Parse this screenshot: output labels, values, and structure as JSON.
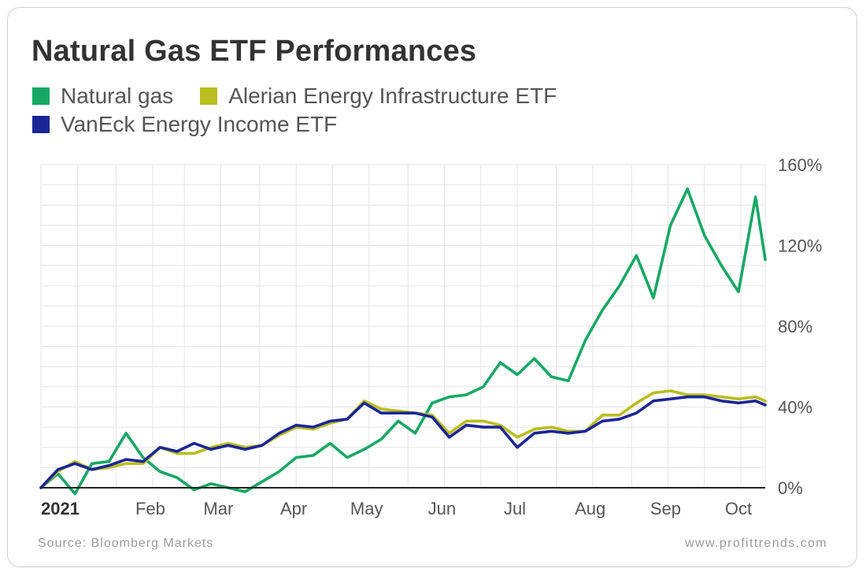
{
  "chart_data": {
    "type": "line",
    "title": "Natural Gas ETF Performances",
    "xlabel": "",
    "ylabel": "",
    "x_tick_labels": [
      "2021",
      "Feb",
      "Mar",
      "Apr",
      "May",
      "Jun",
      "Jul",
      "Aug",
      "Sep",
      "Oct"
    ],
    "y_tick_labels": [
      "0%",
      "40%",
      "80%",
      "120%",
      "160%"
    ],
    "y_ticks": [
      0,
      40,
      80,
      120,
      160
    ],
    "ylim": [
      0,
      160
    ],
    "xlim": [
      "2021-01-01",
      "2021-10-26"
    ],
    "grid": true,
    "legend_position": "top-left",
    "x_dates": [
      "2021-01-01",
      "2021-01-08",
      "2021-01-15",
      "2021-01-22",
      "2021-01-29",
      "2021-02-05",
      "2021-02-12",
      "2021-02-19",
      "2021-02-26",
      "2021-03-05",
      "2021-03-12",
      "2021-03-19",
      "2021-03-26",
      "2021-04-02",
      "2021-04-09",
      "2021-04-16",
      "2021-04-23",
      "2021-04-30",
      "2021-05-07",
      "2021-05-14",
      "2021-05-21",
      "2021-05-28",
      "2021-06-04",
      "2021-06-11",
      "2021-06-18",
      "2021-06-25",
      "2021-07-02",
      "2021-07-09",
      "2021-07-16",
      "2021-07-23",
      "2021-07-30",
      "2021-08-06",
      "2021-08-13",
      "2021-08-20",
      "2021-08-27",
      "2021-09-03",
      "2021-09-10",
      "2021-09-17",
      "2021-09-24",
      "2021-10-01",
      "2021-10-08",
      "2021-10-15",
      "2021-10-22",
      "2021-10-26"
    ],
    "series": [
      {
        "name": "Natural gas",
        "color": "#16a864",
        "values": [
          0,
          7,
          -3,
          12,
          13,
          27,
          15,
          8,
          5,
          -1,
          2,
          0,
          -2,
          3,
          8,
          15,
          16,
          22,
          15,
          19,
          24,
          33,
          27,
          42,
          45,
          46,
          50,
          62,
          56,
          64,
          55,
          53,
          73,
          88,
          100,
          115,
          94,
          130,
          148,
          125,
          110,
          97,
          144,
          113
        ]
      },
      {
        "name": "Alerian Energy Infrastructure ETF",
        "color": "#b9bd1e",
        "values": [
          0,
          8,
          13,
          9,
          10,
          12,
          12,
          20,
          17,
          17,
          20,
          22,
          20,
          21,
          26,
          30,
          29,
          32,
          34,
          43,
          39,
          38,
          37,
          36,
          27,
          33,
          33,
          31,
          25,
          29,
          30,
          28,
          28,
          36,
          36,
          42,
          47,
          48,
          46,
          46,
          45,
          44,
          45,
          43
        ]
      },
      {
        "name": "VanEck Energy Income ETF",
        "color": "#1a2696",
        "values": [
          0,
          9,
          12,
          9,
          11,
          14,
          13,
          20,
          18,
          22,
          19,
          21,
          19,
          21,
          27,
          31,
          30,
          33,
          34,
          42,
          37,
          37,
          37,
          35,
          25,
          31,
          30,
          30,
          20,
          27,
          28,
          27,
          28,
          33,
          34,
          37,
          43,
          44,
          45,
          45,
          43,
          42,
          43,
          41
        ]
      }
    ]
  },
  "source_text": "Source: Bloomberg Markets",
  "site_text": "www.profittrends.com"
}
